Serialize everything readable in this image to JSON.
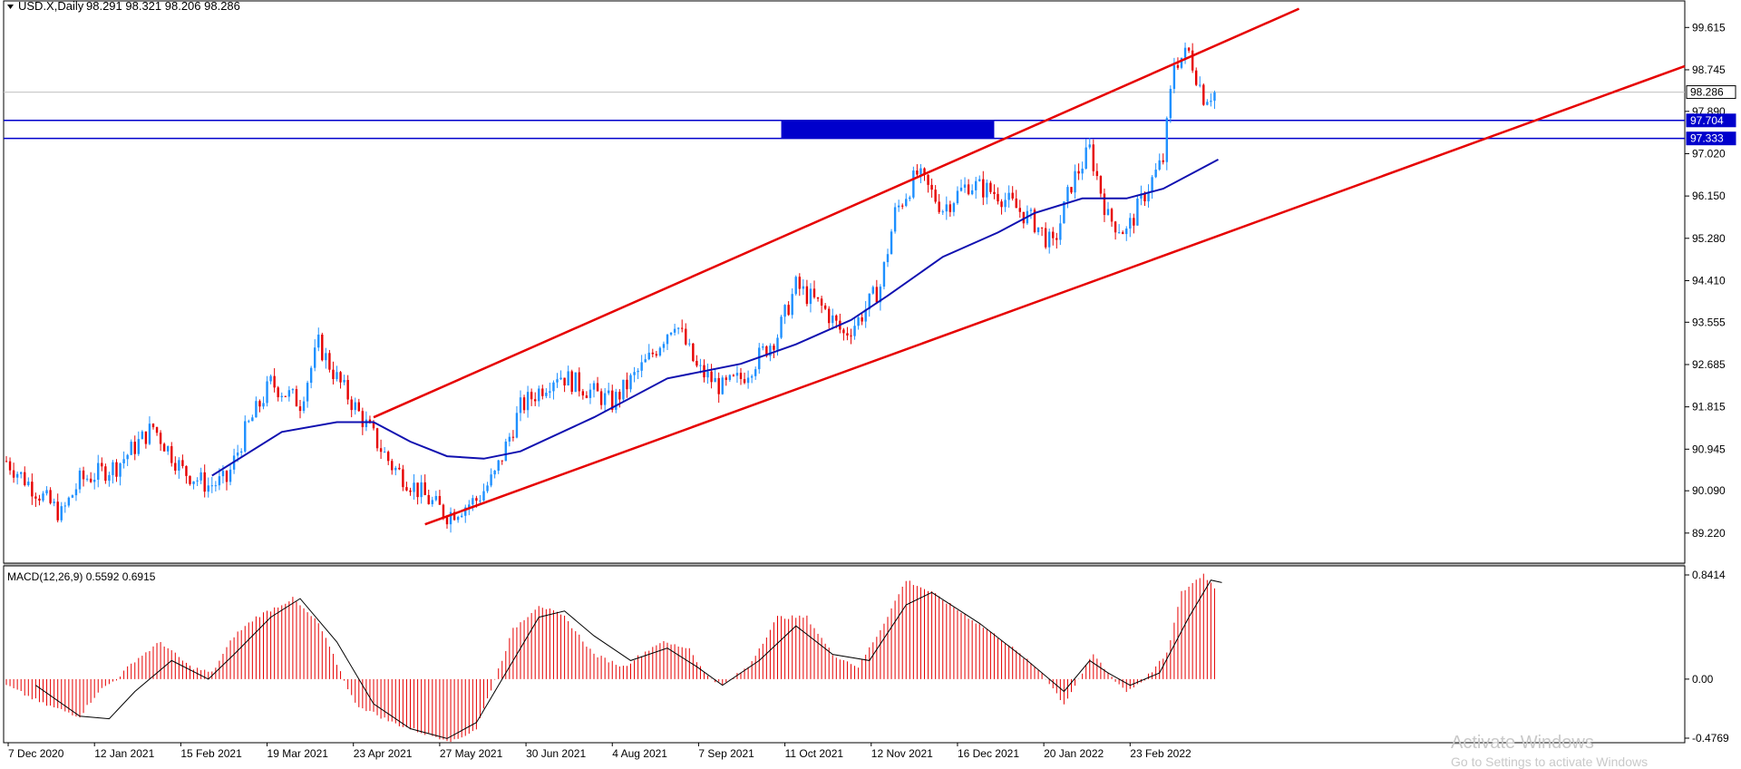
{
  "header": {
    "symbol": "USD.X,Daily",
    "ohlc": "98.291 98.321 98.206 98.286"
  },
  "indicator": {
    "label": "MACD(12,26,9) 0.5592 0.6915"
  },
  "watermark": {
    "line1": "Activate Windows",
    "line2": "Go to Settings to activate Windows"
  },
  "chart_data": {
    "type": "candlestick",
    "price_axis": {
      "min": 88.9,
      "max": 99.9,
      "ticks": [
        "99.615",
        "98.745",
        "97.890",
        "97.020",
        "96.150",
        "95.280",
        "94.410",
        "93.555",
        "92.685",
        "91.815",
        "90.945",
        "90.090",
        "89.220"
      ]
    },
    "current_price": "98.286",
    "zone": {
      "top": 97.704,
      "bottom": 97.333,
      "top_label": "97.704",
      "bottom_label": "97.333"
    },
    "x_labels": [
      "7 Dec 2020",
      "12 Jan 2021",
      "15 Feb 2021",
      "19 Mar 2021",
      "23 Apr 2021",
      "27 May 2021",
      "30 Jun 2021",
      "4 Aug 2021",
      "7 Sep 2021",
      "11 Oct 2021",
      "12 Nov 2021",
      "16 Dec 2021",
      "20 Jan 2022",
      "23 Feb 2022"
    ],
    "n_bars": 330,
    "price_path": [
      [
        0,
        90.7
      ],
      [
        8,
        90.1
      ],
      [
        15,
        89.6
      ],
      [
        20,
        90.3
      ],
      [
        30,
        90.6
      ],
      [
        40,
        91.4
      ],
      [
        48,
        90.5
      ],
      [
        55,
        90.2
      ],
      [
        60,
        90.3
      ],
      [
        65,
        91.3
      ],
      [
        72,
        92.3
      ],
      [
        80,
        91.9
      ],
      [
        85,
        93.1
      ],
      [
        90,
        92.4
      ],
      [
        95,
        91.8
      ],
      [
        105,
        90.6
      ],
      [
        115,
        89.9
      ],
      [
        120,
        89.6
      ],
      [
        128,
        89.9
      ],
      [
        133,
        90.4
      ],
      [
        140,
        91.8
      ],
      [
        150,
        92.5
      ],
      [
        160,
        92.1
      ],
      [
        165,
        91.9
      ],
      [
        175,
        92.8
      ],
      [
        182,
        93.6
      ],
      [
        188,
        92.6
      ],
      [
        195,
        92.2
      ],
      [
        200,
        92.4
      ],
      [
        210,
        93.3
      ],
      [
        215,
        94.3
      ],
      [
        223,
        93.8
      ],
      [
        228,
        93.3
      ],
      [
        232,
        93.6
      ],
      [
        238,
        94.3
      ],
      [
        242,
        95.8
      ],
      [
        248,
        96.6
      ],
      [
        255,
        95.9
      ],
      [
        262,
        96.4
      ],
      [
        270,
        96.2
      ],
      [
        280,
        95.6
      ],
      [
        285,
        95.1
      ],
      [
        290,
        96.4
      ],
      [
        295,
        97.1
      ],
      [
        300,
        95.7
      ],
      [
        305,
        95.4
      ],
      [
        310,
        96.2
      ],
      [
        315,
        96.9
      ],
      [
        318,
        98.9
      ],
      [
        322,
        99.1
      ],
      [
        326,
        98.2
      ],
      [
        330,
        98.3
      ]
    ],
    "ma": [
      [
        56,
        90.4
      ],
      [
        75,
        91.3
      ],
      [
        90,
        91.5
      ],
      [
        100,
        91.5
      ],
      [
        110,
        91.1
      ],
      [
        120,
        90.8
      ],
      [
        130,
        90.75
      ],
      [
        140,
        90.9
      ],
      [
        160,
        91.6
      ],
      [
        180,
        92.4
      ],
      [
        200,
        92.7
      ],
      [
        215,
        93.1
      ],
      [
        230,
        93.6
      ],
      [
        240,
        94.1
      ],
      [
        255,
        94.9
      ],
      [
        270,
        95.4
      ],
      [
        280,
        95.8
      ],
      [
        293,
        96.1
      ],
      [
        305,
        96.1
      ],
      [
        315,
        96.3
      ],
      [
        325,
        96.7
      ],
      [
        330,
        96.9
      ]
    ],
    "channel": {
      "upper": [
        [
          100,
          91.6
        ],
        [
          352,
          100.0
        ]
      ],
      "lower": [
        [
          114,
          89.4
        ],
        [
          500,
          100.0
        ]
      ]
    },
    "macd": {
      "range": [
        -0.4769,
        0.8414
      ],
      "ticks": [
        "0.8414",
        "0.00",
        "-0.4769"
      ],
      "histogram_path": [
        [
          0,
          -0.05
        ],
        [
          10,
          -0.2
        ],
        [
          20,
          -0.3
        ],
        [
          25,
          -0.1
        ],
        [
          30,
          0.0
        ],
        [
          35,
          0.15
        ],
        [
          42,
          0.3
        ],
        [
          50,
          0.1
        ],
        [
          56,
          0.05
        ],
        [
          62,
          0.35
        ],
        [
          68,
          0.5
        ],
        [
          78,
          0.65
        ],
        [
          85,
          0.45
        ],
        [
          95,
          -0.2
        ],
        [
          105,
          -0.35
        ],
        [
          115,
          -0.45
        ],
        [
          122,
          -0.5
        ],
        [
          128,
          -0.4
        ],
        [
          133,
          0.0
        ],
        [
          138,
          0.4
        ],
        [
          145,
          0.6
        ],
        [
          152,
          0.5
        ],
        [
          160,
          0.2
        ],
        [
          168,
          0.1
        ],
        [
          178,
          0.3
        ],
        [
          186,
          0.25
        ],
        [
          190,
          0.05
        ],
        [
          195,
          -0.05
        ],
        [
          202,
          0.1
        ],
        [
          210,
          0.5
        ],
        [
          218,
          0.5
        ],
        [
          225,
          0.2
        ],
        [
          232,
          0.1
        ],
        [
          238,
          0.4
        ],
        [
          245,
          0.8
        ],
        [
          252,
          0.7
        ],
        [
          262,
          0.5
        ],
        [
          272,
          0.3
        ],
        [
          282,
          0.05
        ],
        [
          288,
          -0.2
        ],
        [
          292,
          0.0
        ],
        [
          296,
          0.2
        ],
        [
          300,
          0.05
        ],
        [
          305,
          -0.1
        ],
        [
          310,
          0.0
        ],
        [
          316,
          0.2
        ],
        [
          320,
          0.7
        ],
        [
          326,
          0.85
        ],
        [
          330,
          0.7
        ]
      ],
      "signal_path": [
        [
          8,
          -0.05
        ],
        [
          20,
          -0.3
        ],
        [
          28,
          -0.32
        ],
        [
          35,
          -0.1
        ],
        [
          45,
          0.15
        ],
        [
          55,
          0.0
        ],
        [
          62,
          0.2
        ],
        [
          72,
          0.5
        ],
        [
          80,
          0.65
        ],
        [
          90,
          0.3
        ],
        [
          100,
          -0.2
        ],
        [
          110,
          -0.4
        ],
        [
          120,
          -0.48
        ],
        [
          128,
          -0.35
        ],
        [
          135,
          0.0
        ],
        [
          145,
          0.5
        ],
        [
          152,
          0.55
        ],
        [
          160,
          0.35
        ],
        [
          170,
          0.15
        ],
        [
          180,
          0.25
        ],
        [
          188,
          0.1
        ],
        [
          195,
          -0.05
        ],
        [
          205,
          0.15
        ],
        [
          215,
          0.43
        ],
        [
          225,
          0.2
        ],
        [
          235,
          0.15
        ],
        [
          245,
          0.6
        ],
        [
          252,
          0.7
        ],
        [
          265,
          0.45
        ],
        [
          278,
          0.15
        ],
        [
          288,
          -0.1
        ],
        [
          295,
          0.15
        ],
        [
          300,
          0.05
        ],
        [
          306,
          -0.05
        ],
        [
          314,
          0.05
        ],
        [
          322,
          0.5
        ],
        [
          328,
          0.8
        ],
        [
          331,
          0.78
        ]
      ]
    }
  }
}
